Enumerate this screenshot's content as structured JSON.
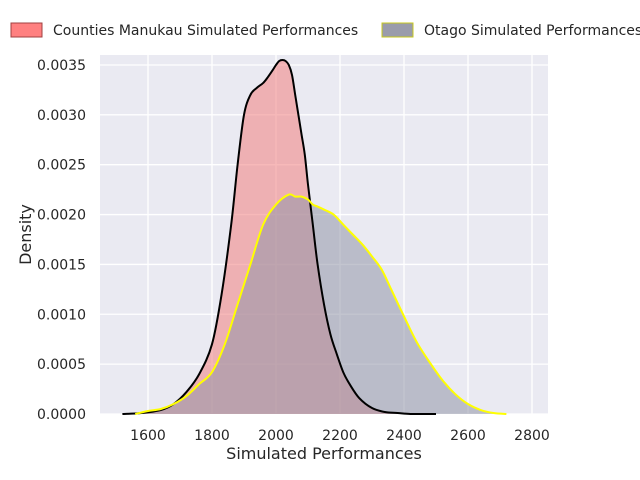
{
  "chart_data": {
    "type": "area",
    "title": "",
    "xlabel": "Simulated Performances",
    "ylabel": "Density",
    "xlim": [
      1450,
      2850
    ],
    "ylim": [
      0,
      0.0036
    ],
    "xticks": [
      1600,
      1800,
      2000,
      2200,
      2400,
      2600,
      2800
    ],
    "yticks": [
      0.0,
      0.0005,
      0.001,
      0.0015,
      0.002,
      0.0025,
      0.003,
      0.0035
    ],
    "xtick_labels": [
      "1600",
      "1800",
      "2000",
      "2200",
      "2400",
      "2600",
      "2800"
    ],
    "ytick_labels": [
      "0.0000",
      "0.0005",
      "0.0010",
      "0.0015",
      "0.0020",
      "0.0025",
      "0.0030",
      "0.0035"
    ],
    "grid": true,
    "legend_position": "top",
    "background": "#eaeaf2",
    "series": [
      {
        "name": "Counties Manukau Simulated Performances",
        "fill": "#f08080",
        "fill_opacity": 0.55,
        "line": "#000000",
        "legend_fill": "#ff8080",
        "legend_edge": "#a04040",
        "x": [
          1520,
          1580,
          1640,
          1680,
          1720,
          1760,
          1800,
          1830,
          1860,
          1880,
          1900,
          1920,
          1940,
          1960,
          1975,
          1990,
          2000,
          2010,
          2020,
          2030,
          2040,
          2050,
          2060,
          2070,
          2080,
          2090,
          2100,
          2115,
          2130,
          2150,
          2170,
          2190,
          2210,
          2230,
          2260,
          2300,
          2340,
          2380,
          2420,
          2460,
          2500
        ],
        "y": [
          0.0,
          1e-05,
          4e-05,
          0.0001,
          0.00022,
          0.0004,
          0.0007,
          0.0012,
          0.0019,
          0.0025,
          0.003,
          0.0032,
          0.00327,
          0.00332,
          0.00338,
          0.00345,
          0.0035,
          0.00354,
          0.00355,
          0.00354,
          0.0035,
          0.0034,
          0.0032,
          0.003,
          0.0028,
          0.0026,
          0.0023,
          0.0019,
          0.0015,
          0.0011,
          0.0008,
          0.0006,
          0.00042,
          0.0003,
          0.00016,
          6e-05,
          2e-05,
          1e-05,
          0.0,
          0.0,
          0.0
        ]
      },
      {
        "name": "Otago Simulated Performances",
        "fill": "#9295a8",
        "fill_opacity": 0.55,
        "line": "#ffff00",
        "legend_fill": "#9a9cab",
        "legend_edge": "#c8c81e",
        "x": [
          1560,
          1600,
          1640,
          1680,
          1720,
          1760,
          1800,
          1840,
          1880,
          1920,
          1960,
          2000,
          2040,
          2060,
          2080,
          2100,
          2115,
          2130,
          2150,
          2180,
          2210,
          2240,
          2270,
          2300,
          2330,
          2360,
          2400,
          2440,
          2480,
          2520,
          2560,
          2600,
          2640,
          2680,
          2720
        ],
        "y": [
          0.0,
          3e-05,
          5e-05,
          0.0001,
          0.00018,
          0.0003,
          0.00042,
          0.0007,
          0.0011,
          0.0015,
          0.0019,
          0.0021,
          0.0022,
          0.00218,
          0.00218,
          0.00215,
          0.0021,
          0.00208,
          0.00205,
          0.002,
          0.0019,
          0.0018,
          0.0017,
          0.00158,
          0.00145,
          0.00125,
          0.00098,
          0.00072,
          0.00052,
          0.00034,
          0.0002,
          0.0001,
          4e-05,
          1e-05,
          0.0
        ]
      }
    ]
  }
}
